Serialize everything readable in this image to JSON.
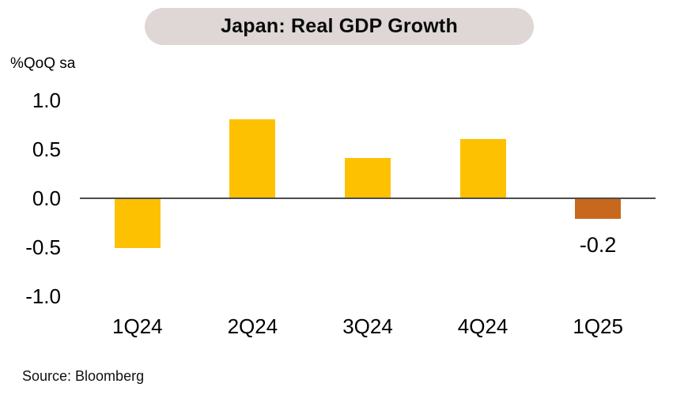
{
  "header": {
    "pill_color": "#DED7D5",
    "title_color": "#0A0A0A"
  },
  "chart_data": {
    "type": "bar",
    "title": "Japan: Real GDP Growth",
    "unit_label": "%QoQ sa",
    "xlabel": "",
    "ylabel": "%QoQ sa",
    "categories": [
      "1Q24",
      "2Q24",
      "3Q24",
      "4Q24",
      "1Q25"
    ],
    "values": [
      -0.5,
      0.8,
      0.4,
      0.6,
      -0.2
    ],
    "bar_colors": [
      "#FDC101",
      "#FDC101",
      "#FDC101",
      "#FDC101",
      "#C8681E"
    ],
    "default_bar_color": "#FDC101",
    "highlight_bar_color": "#C8681E",
    "data_labels": [
      null,
      null,
      null,
      null,
      "-0.2"
    ],
    "ylim": [
      -1.0,
      1.0
    ],
    "yticks": [
      1.0,
      0.5,
      0.0,
      -0.5,
      -1.0
    ],
    "ytick_labels": [
      "1.0",
      "0.5",
      "0.0",
      "-0.5",
      "-1.0"
    ],
    "grid": false,
    "legend": null,
    "axis_line_color": "#4D4D4D"
  },
  "footer": {
    "source": "Source: Bloomberg"
  }
}
